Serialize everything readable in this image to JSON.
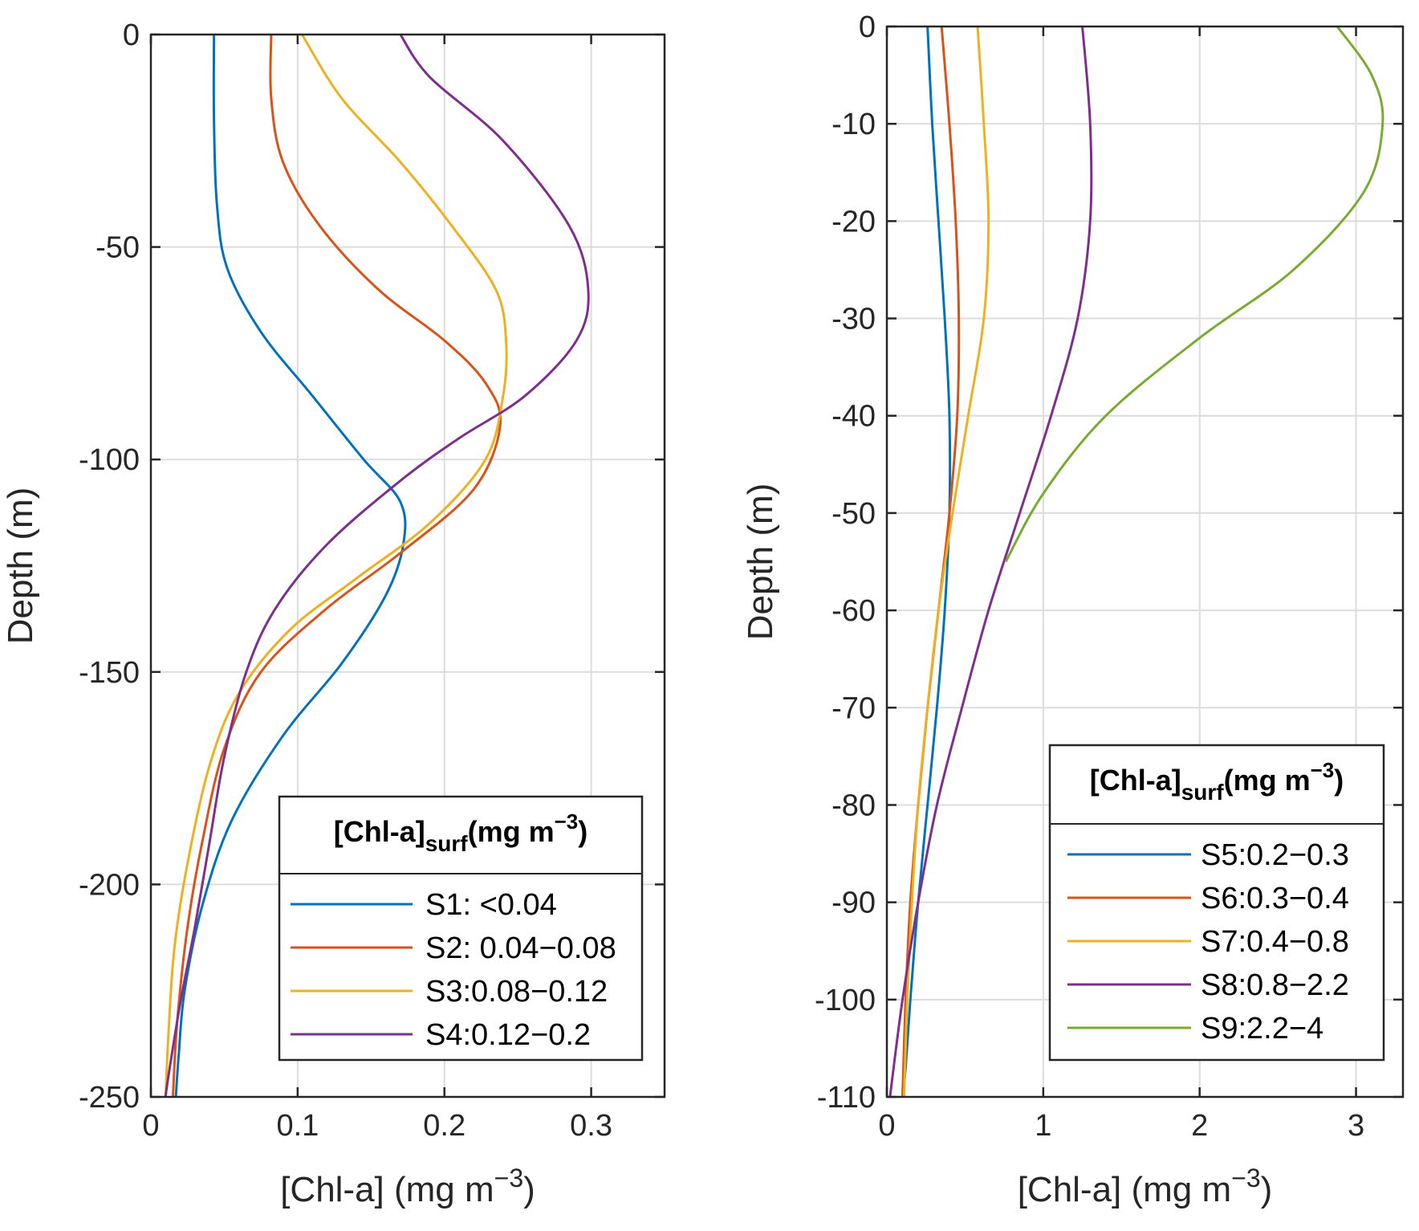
{
  "chart_data": [
    {
      "type": "line",
      "xlabel": "[Chl-a] (mg m",
      "xlabel_sup": "−3",
      "xlabel_end": ")",
      "ylabel": "Depth (m)",
      "xlim": [
        0,
        0.35
      ],
      "ylim": [
        -250,
        0
      ],
      "xticks": [
        0,
        0.1,
        0.2,
        0.3
      ],
      "xtick_labels": [
        "0",
        "0.1",
        "0.2",
        "0.3"
      ],
      "yticks": [
        0,
        -50,
        -100,
        -150,
        -200,
        -250
      ],
      "ytick_labels": [
        "0",
        "-50",
        "-100",
        "-150",
        "-200",
        "-250"
      ],
      "grid": true,
      "legend_position": "bottom-right",
      "legend_title": {
        "main": "[Chl-a]",
        "sub": "surf",
        "rest": "(mg m",
        "sup": "−3",
        "end": ")"
      },
      "series": [
        {
          "name": "S1: <0.04",
          "color": "#0072BD",
          "x": [
            0.043,
            0.043,
            0.045,
            0.052,
            0.075,
            0.11,
            0.145,
            0.17,
            0.172,
            0.16,
            0.13,
            0.09,
            0.055,
            0.035,
            0.023,
            0.019,
            0.017
          ],
          "depth": [
            0,
            -20,
            -40,
            -55,
            -70,
            -85,
            -100,
            -110,
            -120,
            -132,
            -148,
            -165,
            -185,
            -205,
            -225,
            -240,
            -250
          ]
        },
        {
          "name": "S2: 0.04−0.08",
          "color": "#D95319",
          "x": [
            0.082,
            0.082,
            0.09,
            0.115,
            0.155,
            0.2,
            0.228,
            0.238,
            0.22,
            0.17,
            0.12,
            0.075,
            0.05,
            0.035,
            0.025,
            0.018,
            0.015
          ],
          "depth": [
            0,
            -15,
            -30,
            -45,
            -60,
            -72,
            -82,
            -92,
            -107,
            -122,
            -135,
            -150,
            -168,
            -190,
            -210,
            -232,
            -250
          ]
        },
        {
          "name": "S3:0.08−0.12",
          "color": "#EDB120",
          "x": [
            0.103,
            0.13,
            0.17,
            0.205,
            0.235,
            0.242,
            0.24,
            0.228,
            0.19,
            0.14,
            0.095,
            0.06,
            0.04,
            0.025,
            0.016,
            0.012,
            0.01
          ],
          "depth": [
            0,
            -15,
            -30,
            -45,
            -60,
            -72,
            -85,
            -100,
            -115,
            -128,
            -140,
            -155,
            -172,
            -195,
            -215,
            -235,
            -250
          ]
        },
        {
          "name": "S4:0.12−0.2",
          "color": "#7E2F8E",
          "x": [
            0.17,
            0.19,
            0.24,
            0.285,
            0.298,
            0.29,
            0.255,
            0.21,
            0.17,
            0.12,
            0.085,
            0.065,
            0.05,
            0.04,
            0.03,
            0.02,
            0.012,
            0.01
          ],
          "depth": [
            0,
            -10,
            -25,
            -45,
            -60,
            -72,
            -85,
            -95,
            -105,
            -120,
            -135,
            -150,
            -170,
            -190,
            -210,
            -228,
            -245,
            -250
          ]
        }
      ]
    },
    {
      "type": "line",
      "xlabel": "[Chl-a] (mg m",
      "xlabel_sup": "−3",
      "xlabel_end": ")",
      "ylabel": "Depth (m)",
      "xlim": [
        0,
        3.3
      ],
      "ylim": [
        -110,
        0
      ],
      "xticks": [
        0,
        1,
        2,
        3
      ],
      "xtick_labels": [
        "0",
        "1",
        "2",
        "3"
      ],
      "yticks": [
        0,
        -10,
        -20,
        -30,
        -40,
        -50,
        -60,
        -70,
        -80,
        -90,
        -100,
        -110
      ],
      "ytick_labels": [
        "0",
        "-10",
        "-20",
        "-30",
        "-40",
        "-50",
        "-60",
        "-70",
        "-80",
        "-90",
        "-100",
        "-110"
      ],
      "grid": true,
      "legend_position": "bottom-right",
      "legend_title": {
        "main": "[Chl-a]",
        "sub": "surf",
        "rest": "(mg m",
        "sup": "−3",
        "end": ")"
      },
      "series": [
        {
          "name": "S5:0.2−0.3",
          "color": "#0072BD",
          "x": [
            0.26,
            0.29,
            0.33,
            0.37,
            0.4,
            0.4,
            0.37,
            0.32,
            0.26,
            0.2,
            0.15,
            0.12,
            0.1
          ],
          "depth": [
            0,
            -10,
            -20,
            -30,
            -40,
            -50,
            -60,
            -70,
            -80,
            -90,
            -100,
            -107,
            -110
          ]
        },
        {
          "name": "S6:0.3−0.4",
          "color": "#D95319",
          "x": [
            0.35,
            0.4,
            0.44,
            0.46,
            0.45,
            0.4,
            0.33,
            0.26,
            0.2,
            0.15,
            0.12,
            0.1
          ],
          "depth": [
            0,
            -10,
            -20,
            -30,
            -40,
            -50,
            -60,
            -70,
            -80,
            -90,
            -100,
            -110
          ]
        },
        {
          "name": "S7:0.4−0.8",
          "color": "#EDB120",
          "x": [
            0.58,
            0.62,
            0.65,
            0.62,
            0.52,
            0.42,
            0.33,
            0.26,
            0.2,
            0.16,
            0.13,
            0.11
          ],
          "depth": [
            0,
            -10,
            -20,
            -30,
            -40,
            -50,
            -60,
            -70,
            -80,
            -90,
            -100,
            -110
          ]
        },
        {
          "name": "S8:0.8−2.2",
          "color": "#7E2F8E",
          "x": [
            1.25,
            1.3,
            1.3,
            1.22,
            1.05,
            0.85,
            0.65,
            0.48,
            0.32,
            0.2,
            0.1,
            0.02
          ],
          "depth": [
            0,
            -10,
            -20,
            -30,
            -40,
            -50,
            -60,
            -70,
            -80,
            -90,
            -100,
            -110
          ]
        },
        {
          "name": "S9:2.2−4",
          "color": "#77AC30",
          "x": [
            2.88,
            3.1,
            3.17,
            3.05,
            2.6,
            2.0,
            1.4,
            1.0,
            0.76
          ],
          "depth": [
            0,
            -5,
            -10,
            -17,
            -25,
            -32,
            -40,
            -48,
            -55
          ]
        }
      ]
    }
  ]
}
